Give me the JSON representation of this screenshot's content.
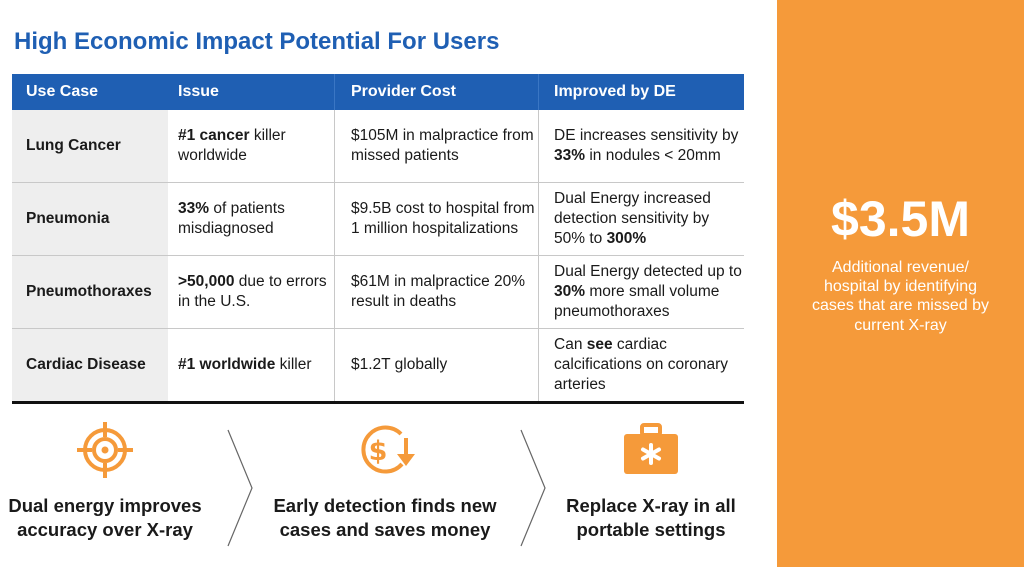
{
  "title": "High Economic Impact Potential For Users",
  "colors": {
    "accent_blue": "#1f5fb3",
    "orange": "#f59a3a",
    "row_label_bg": "#eeeeee"
  },
  "table": {
    "headers": [
      "Use Case",
      "Issue",
      "Provider Cost",
      "Improved by DE"
    ],
    "rows": [
      {
        "use_case": "Lung Cancer",
        "issue": [
          {
            "t": "#1 cancer",
            "b": true
          },
          {
            "t": " killer worldwide",
            "b": false
          }
        ],
        "cost": [
          {
            "t": "$105M in malpractice from missed patients",
            "b": false
          }
        ],
        "improved": [
          {
            "t": "DE increases sensitivity by ",
            "b": false
          },
          {
            "t": "33%",
            "b": true
          },
          {
            "t": " in nodules < 20mm",
            "b": false
          }
        ]
      },
      {
        "use_case": "Pneumonia",
        "issue": [
          {
            "t": "33%",
            "b": true
          },
          {
            "t": " of patients misdiagnosed",
            "b": false
          }
        ],
        "cost": [
          {
            "t": "$9.5B cost to hospital from 1 million hospitalizations",
            "b": false
          }
        ],
        "improved": [
          {
            "t": "Dual Energy increased detection sensitivity by 50% to ",
            "b": false
          },
          {
            "t": "300%",
            "b": true
          }
        ]
      },
      {
        "use_case": "Pneumothoraxes",
        "issue": [
          {
            "t": ">50,000",
            "b": true
          },
          {
            "t": " due to errors in the U.S.",
            "b": false
          }
        ],
        "cost": [
          {
            "t": "$61M in malpractice 20% result in deaths",
            "b": false
          }
        ],
        "improved": [
          {
            "t": "Dual Energy detected up to ",
            "b": false
          },
          {
            "t": "30%",
            "b": true
          },
          {
            "t": " more small volume pneumothoraxes",
            "b": false
          }
        ]
      },
      {
        "use_case": "Cardiac Disease",
        "issue": [
          {
            "t": "#1 worldwide",
            "b": true
          },
          {
            "t": " killer",
            "b": false
          }
        ],
        "cost": [
          {
            "t": "$1.2T globally",
            "b": false
          }
        ],
        "improved": [
          {
            "t": "Can ",
            "b": false
          },
          {
            "t": "see",
            "b": true
          },
          {
            "t": " cardiac calcifications on coronary arteries",
            "b": false
          }
        ]
      }
    ]
  },
  "sidebar": {
    "value": "$3.5M",
    "description": "Additional revenue/ hospital by identifying cases that are missed by current X-ray"
  },
  "features": [
    {
      "icon": "target-icon",
      "label": "Dual energy improves accuracy over X-ray"
    },
    {
      "icon": "dollar-down-icon",
      "label": "Early detection finds new cases and saves money"
    },
    {
      "icon": "medical-kit-icon",
      "label": "Replace X-ray in all portable settings"
    }
  ]
}
